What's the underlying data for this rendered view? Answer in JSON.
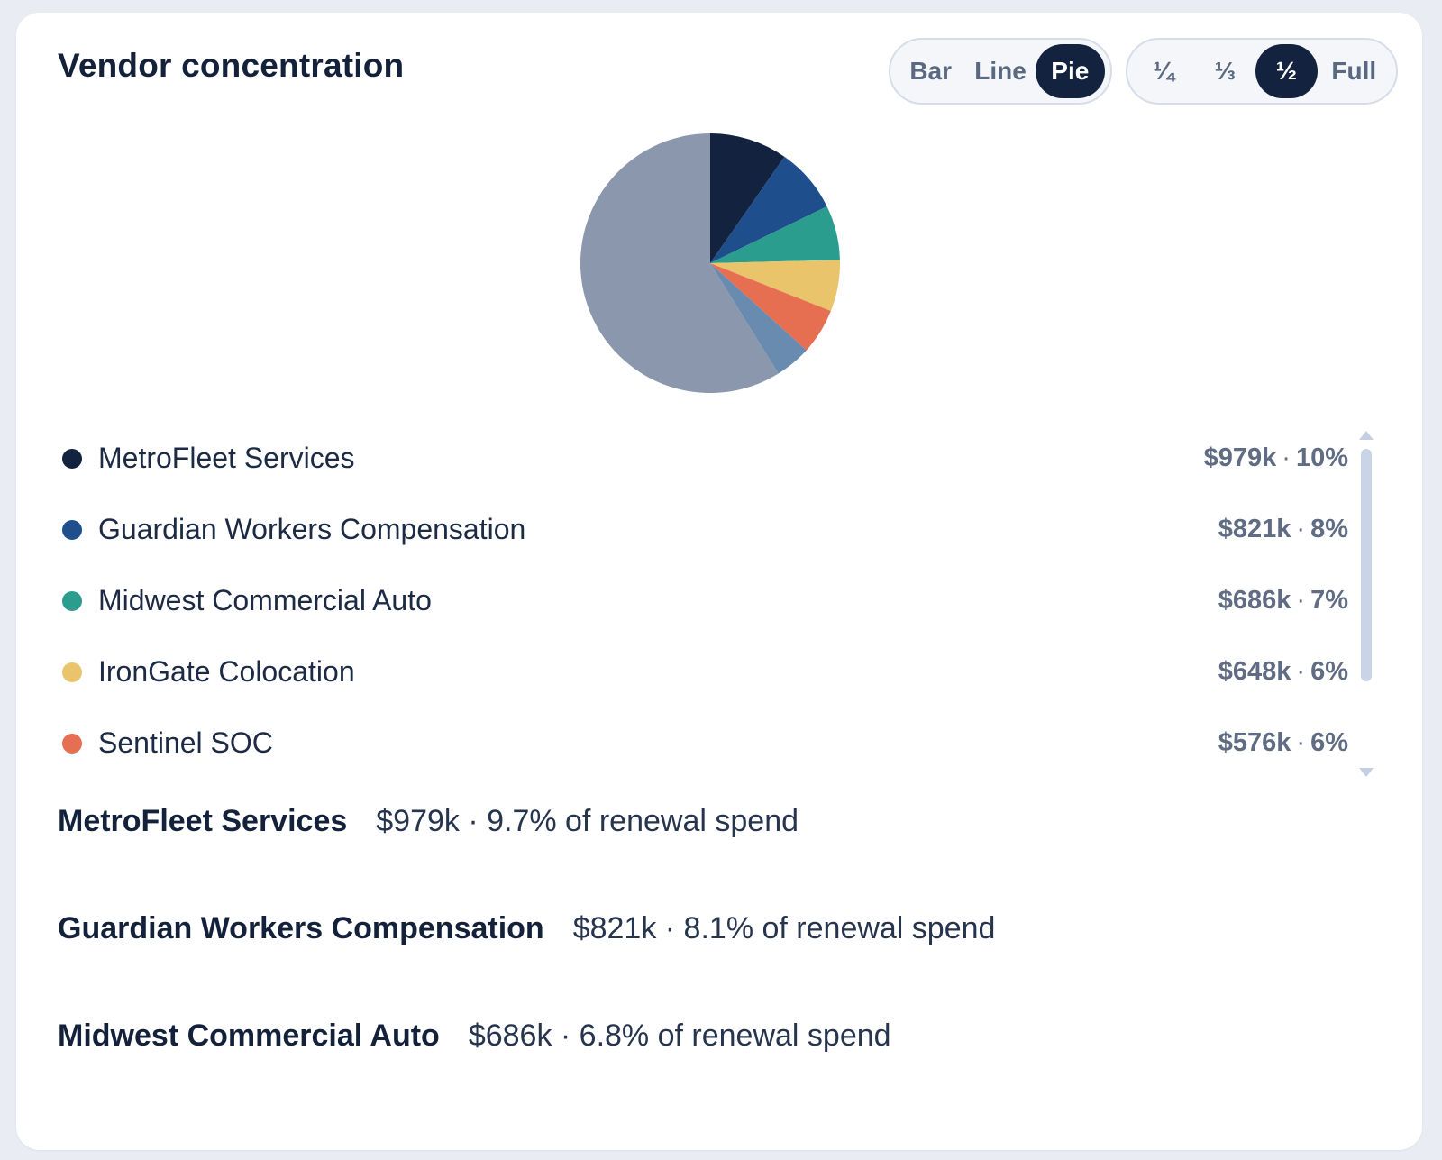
{
  "card": {
    "title": "Vendor concentration"
  },
  "chart_type_toggle": {
    "options": [
      "Bar",
      "Line",
      "Pie"
    ],
    "selected": "Pie"
  },
  "size_toggle": {
    "options": [
      "¼",
      "⅓",
      "½",
      "Full"
    ],
    "selected": "½"
  },
  "chart_data": {
    "type": "pie",
    "categories": [
      "MetroFleet Services",
      "Guardian Workers Compensation",
      "Midwest Commercial Auto",
      "IronGate Colocation",
      "Sentinel SOC",
      "",
      ""
    ],
    "values": [
      9.7,
      8.1,
      6.8,
      6.4,
      5.7,
      4.5,
      58.8
    ],
    "colors": [
      "#13233f",
      "#1f4e8c",
      "#2a9d8f",
      "#e9c46a",
      "#e76f51",
      "#6a8bb0",
      "#8a97ac"
    ]
  },
  "legend": {
    "items": [
      {
        "label": "MetroFleet Services",
        "amount": "$979k",
        "percent": "10%",
        "color": "#13233f"
      },
      {
        "label": "Guardian Workers Compensation",
        "amount": "$821k",
        "percent": "8%",
        "color": "#1f4e8c"
      },
      {
        "label": "Midwest Commercial Auto",
        "amount": "$686k",
        "percent": "7%",
        "color": "#2a9d8f"
      },
      {
        "label": "IronGate Colocation",
        "amount": "$648k",
        "percent": "6%",
        "color": "#e9c46a"
      },
      {
        "label": "Sentinel SOC",
        "amount": "$576k",
        "percent": "6%",
        "color": "#e76f51"
      }
    ]
  },
  "details": [
    {
      "name": "MetroFleet Services",
      "value": "$979k · 9.7% of renewal spend"
    },
    {
      "name": "Guardian Workers Compensation",
      "value": "$821k · 8.1% of renewal spend"
    },
    {
      "name": "Midwest Commercial Auto",
      "value": "$686k · 6.8% of renewal spend"
    }
  ]
}
